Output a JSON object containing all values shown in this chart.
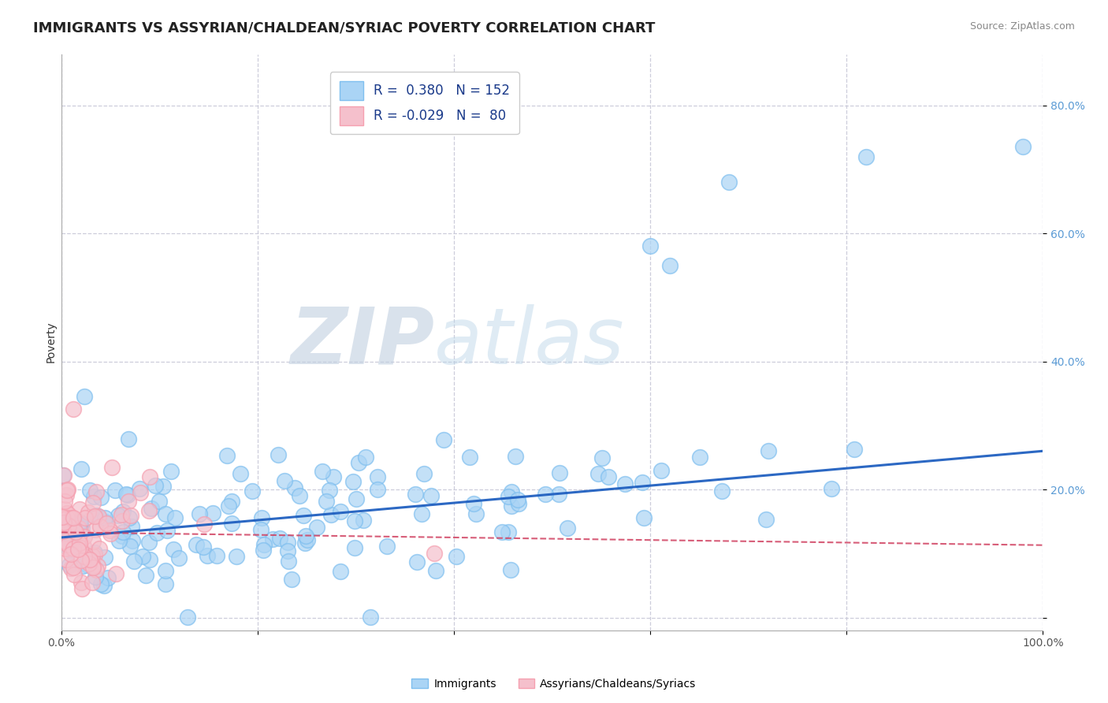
{
  "title": "IMMIGRANTS VS ASSYRIAN/CHALDEAN/SYRIAC POVERTY CORRELATION CHART",
  "source": "Source: ZipAtlas.com",
  "ylabel": "Poverty",
  "xlim": [
    0,
    1
  ],
  "ylim": [
    -0.02,
    0.88
  ],
  "yticks": [
    0.0,
    0.2,
    0.4,
    0.6,
    0.8
  ],
  "ytick_labels": [
    "",
    "20.0%",
    "40.0%",
    "60.0%",
    "80.0%"
  ],
  "xticks": [
    0.0,
    0.2,
    0.4,
    0.6,
    0.8,
    1.0
  ],
  "xtick_labels": [
    "0.0%",
    "",
    "",
    "",
    "",
    "100.0%"
  ],
  "blue_color": "#7fbfef",
  "blue_face": "#aad4f5",
  "pink_color": "#f5a0b0",
  "pink_face": "#f5c0cc",
  "trend_blue": "#2060c0",
  "trend_pink": "#d04060",
  "R_blue": 0.38,
  "N_blue": 152,
  "R_pink": -0.029,
  "N_pink": 80,
  "legend_labels": [
    "Immigrants",
    "Assyrians/Chaldeans/Syriacs"
  ],
  "watermark_zip": "ZIP",
  "watermark_atlas": "atlas",
  "background_color": "#ffffff",
  "grid_color": "#c8c8d8",
  "title_fontsize": 13,
  "axis_label_fontsize": 10,
  "tick_fontsize": 10,
  "legend_fontsize": 12
}
